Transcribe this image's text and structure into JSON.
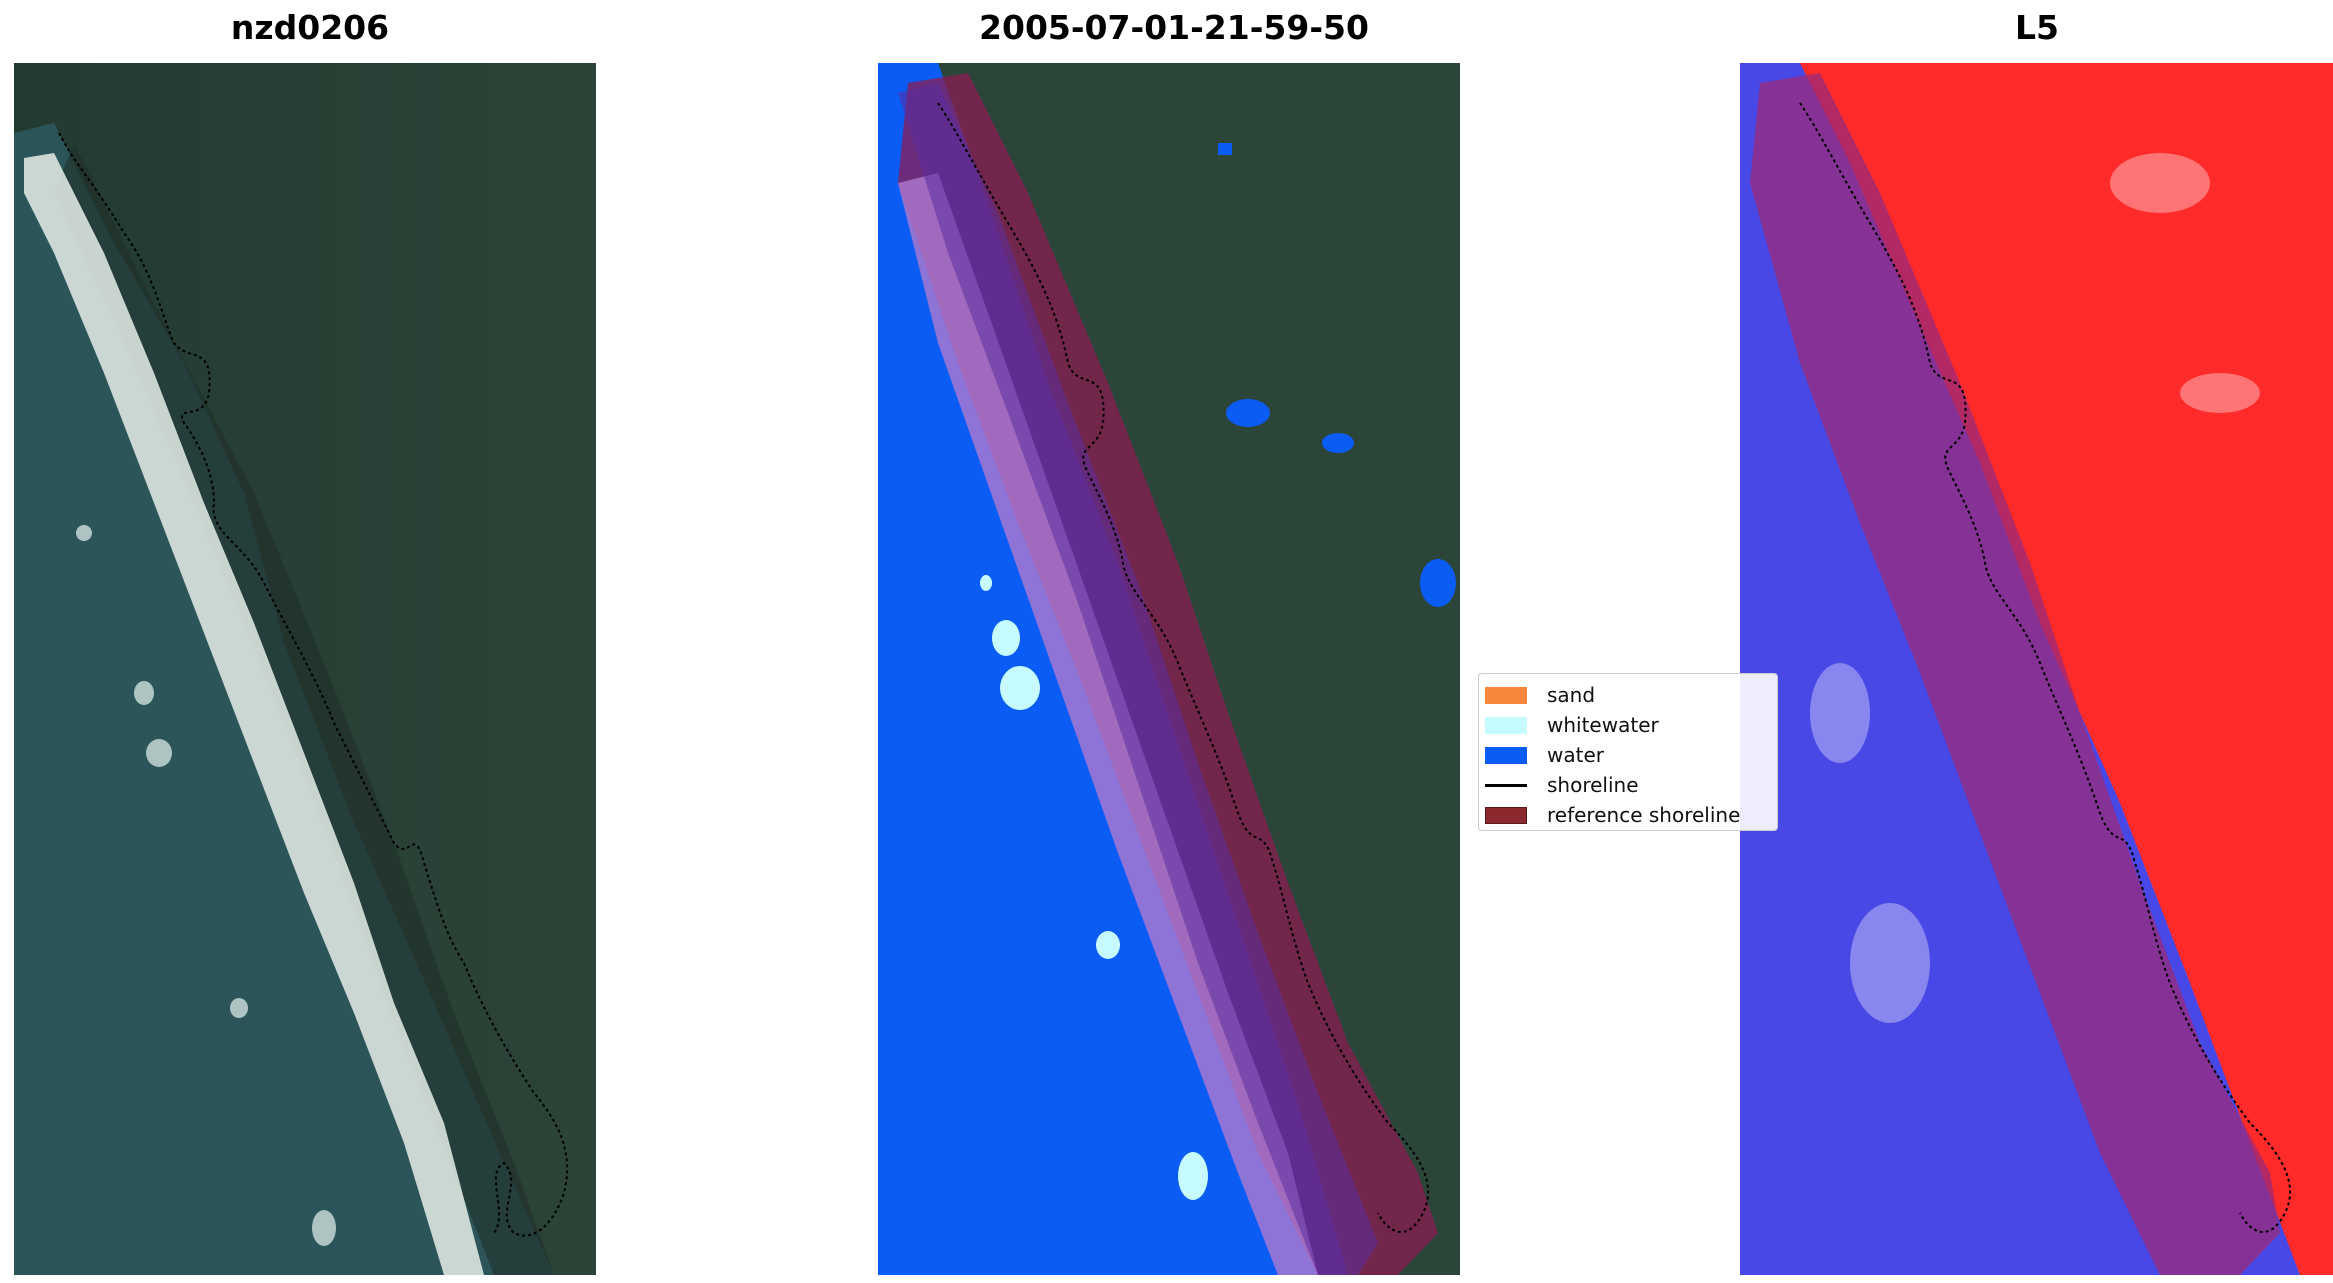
{
  "titles": {
    "left": "nzd0206",
    "middle": "2005-07-01-21-59-50",
    "right": "L5"
  },
  "legend": {
    "items": [
      {
        "label": "sand",
        "color": "#f7883b"
      },
      {
        "label": "whitewater",
        "color": "#c6fbff"
      },
      {
        "label": "water",
        "color": "#0b5cf5"
      },
      {
        "label": "shoreline",
        "color": "#000000"
      },
      {
        "label": "reference shoreline",
        "color": "#8b2a2e"
      }
    ]
  },
  "colors": {
    "sea": "#2f5a5e",
    "land": "#2f4a3a",
    "water_class": "#0b5cf5",
    "reference_buffer": "#8b1c32",
    "index_positive": "#ff2020",
    "index_negative": "#3f3fe0"
  }
}
